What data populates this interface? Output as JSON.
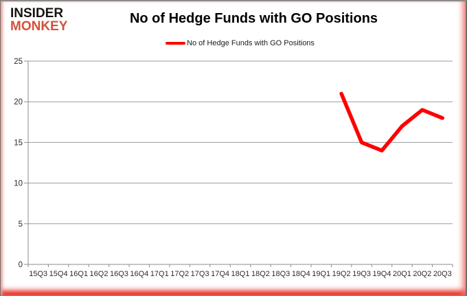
{
  "logo": {
    "line1": "INSIDER",
    "line2": "MONKEY",
    "line1_color": "#161310",
    "line2_color": "#d4503a"
  },
  "header": {
    "title": "No of Hedge Funds with GO Positions"
  },
  "legend": {
    "label": "No of Hedge Funds with GO Positions",
    "swatch_color": "#ff0000"
  },
  "chart_data": {
    "type": "line",
    "title": "No of Hedge Funds with GO Positions",
    "xlabel": "",
    "ylabel": "",
    "categories": [
      "15Q3",
      "15Q4",
      "16Q1",
      "16Q2",
      "16Q3",
      "16Q4",
      "17Q1",
      "17Q2",
      "17Q3",
      "17Q4",
      "18Q1",
      "18Q2",
      "18Q3",
      "18Q4",
      "19Q1",
      "19Q2",
      "19Q3",
      "19Q4",
      "20Q1",
      "20Q2",
      "20Q3"
    ],
    "series": [
      {
        "name": "No of Hedge Funds with GO Positions",
        "color": "#ff0000",
        "values": [
          null,
          null,
          null,
          null,
          null,
          null,
          null,
          null,
          null,
          null,
          null,
          null,
          null,
          null,
          null,
          21,
          15,
          14,
          17,
          19,
          18
        ]
      }
    ],
    "ylim": [
      0,
      25
    ],
    "yticks": [
      0,
      5,
      10,
      15,
      20,
      25
    ],
    "grid": true,
    "legend_position": "top-center",
    "gridline_color": "#9b9b9b",
    "axis_color": "#8e8e8e",
    "tick_label_color": "#2b2b2b",
    "background_color": "#ffffff",
    "accent_border_color": "#e52011"
  }
}
